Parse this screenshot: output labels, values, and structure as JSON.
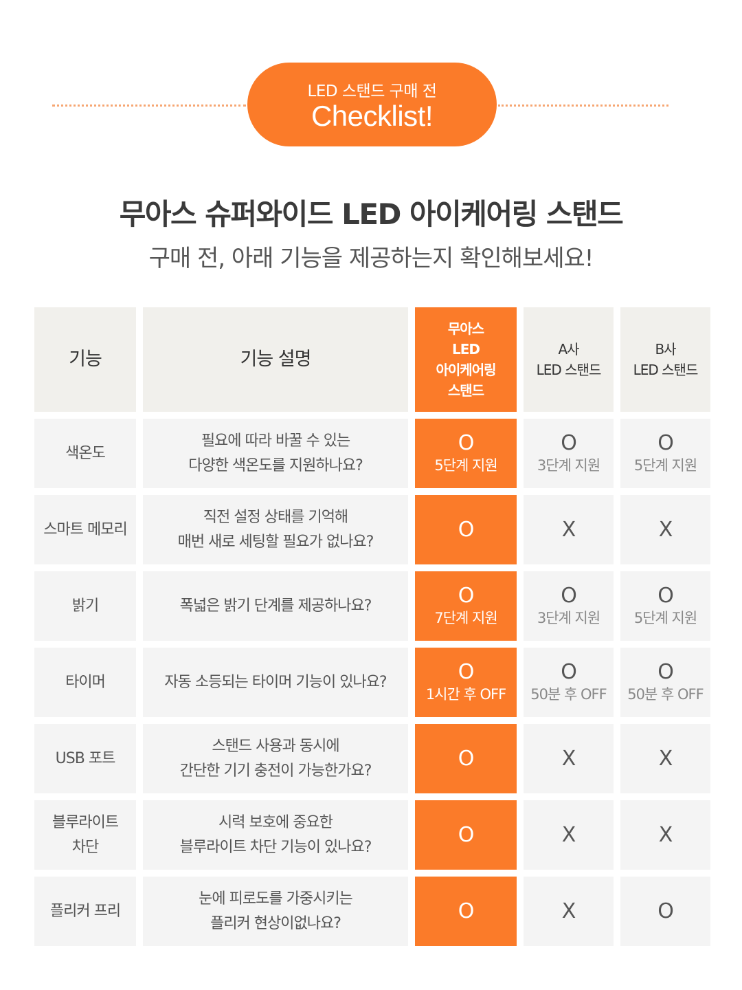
{
  "badge": {
    "subtitle": "LED 스탠드 구매 전",
    "title": "Checklist!"
  },
  "heading": {
    "title": "무아스 슈퍼와이드 LED 아이케어링 스탠드",
    "subtitle": "구매 전, 아래 기능을 제공하는지 확인해보세요!"
  },
  "colors": {
    "accent": "#fb7b29",
    "cell_bg": "#f4f4f4",
    "header_bg": "#f1f0ec"
  },
  "table": {
    "headers": {
      "feature": "기능",
      "description": "기능 설명",
      "muas": [
        "무아스",
        "LED",
        "아이케어링",
        "스탠드"
      ],
      "brand_a": [
        "A사",
        "LED 스탠드"
      ],
      "brand_b": [
        "B사",
        "LED 스탠드"
      ]
    },
    "rows": [
      {
        "feature": [
          "색온도"
        ],
        "description": [
          "필요에 따라 바꿀 수 있는",
          "다양한 색온도를 지원하나요?"
        ],
        "muas": {
          "mark": "O",
          "note": "5단계 지원"
        },
        "a": {
          "mark": "O",
          "note": "3단계 지원"
        },
        "b": {
          "mark": "O",
          "note": "5단계 지원"
        }
      },
      {
        "feature": [
          "스마트 메모리"
        ],
        "description": [
          "직전 설정 상태를 기억해",
          "매번 새로 세팅할 필요가 없나요?"
        ],
        "muas": {
          "mark": "O",
          "note": ""
        },
        "a": {
          "mark": "X",
          "note": ""
        },
        "b": {
          "mark": "X",
          "note": ""
        }
      },
      {
        "feature": [
          "밝기"
        ],
        "description": [
          "폭넓은 밝기 단계를 제공하나요?"
        ],
        "muas": {
          "mark": "O",
          "note": "7단계 지원"
        },
        "a": {
          "mark": "O",
          "note": "3단계 지원"
        },
        "b": {
          "mark": "O",
          "note": "5단계 지원"
        }
      },
      {
        "feature": [
          "타이머"
        ],
        "description": [
          "자동 소등되는 타이머 기능이 있나요?"
        ],
        "muas": {
          "mark": "O",
          "note": "1시간 후 OFF"
        },
        "a": {
          "mark": "O",
          "note": "50분 후 OFF"
        },
        "b": {
          "mark": "O",
          "note": "50분 후 OFF"
        }
      },
      {
        "feature": [
          "USB 포트"
        ],
        "description": [
          "스탠드 사용과 동시에",
          "간단한 기기 충전이 가능한가요?"
        ],
        "muas": {
          "mark": "O",
          "note": ""
        },
        "a": {
          "mark": "X",
          "note": ""
        },
        "b": {
          "mark": "X",
          "note": ""
        }
      },
      {
        "feature": [
          "블루라이트",
          "차단"
        ],
        "description": [
          "시력 보호에 중요한",
          "블루라이트 차단 기능이 있나요?"
        ],
        "muas": {
          "mark": "O",
          "note": ""
        },
        "a": {
          "mark": "X",
          "note": ""
        },
        "b": {
          "mark": "X",
          "note": ""
        }
      },
      {
        "feature": [
          "플리커 프리"
        ],
        "description": [
          "눈에 피로도를 가중시키는",
          "플리커 현상이없나요?"
        ],
        "muas": {
          "mark": "O",
          "note": ""
        },
        "a": {
          "mark": "X",
          "note": ""
        },
        "b": {
          "mark": "O",
          "note": ""
        }
      }
    ]
  }
}
